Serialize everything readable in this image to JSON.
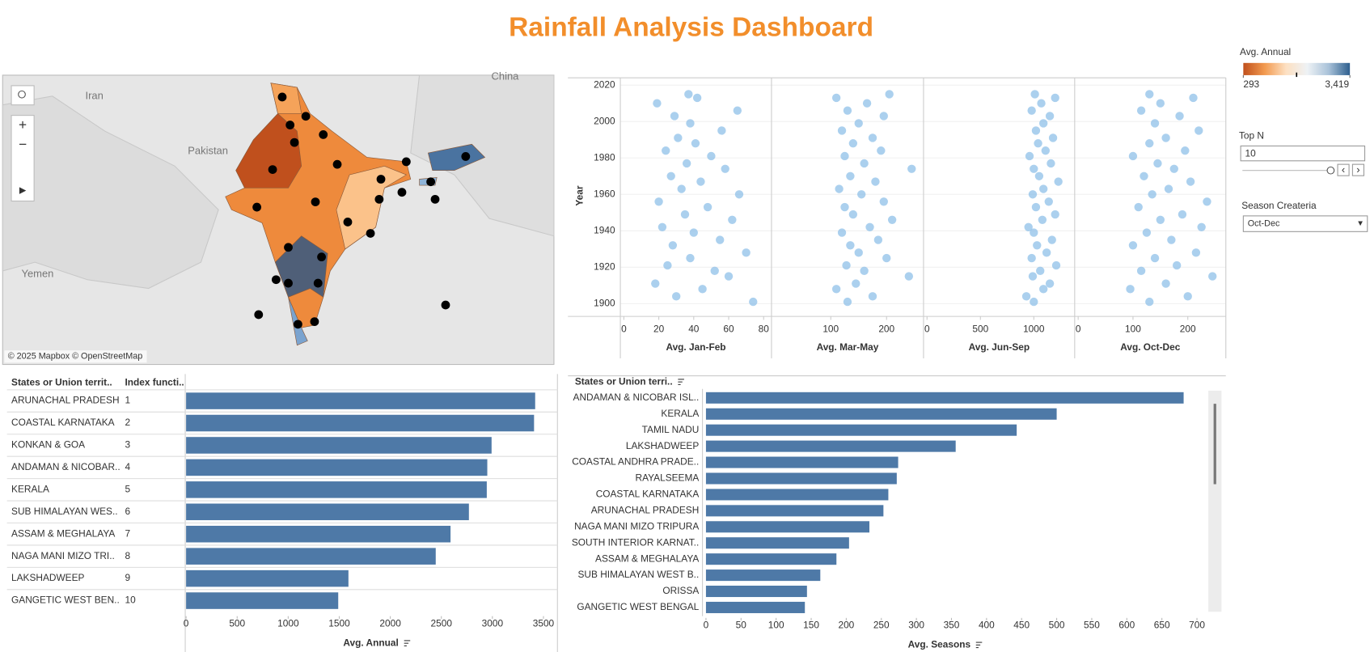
{
  "title": "Rainfall Analysis Dashboard",
  "map": {
    "labels": [
      "Iran",
      "Pakistan",
      "China",
      "Yemen"
    ],
    "attribution": "© 2025 Mapbox © OpenStreetMap"
  },
  "map_legend": {
    "title": "Avg. Annual",
    "min": {
      "value": 293,
      "label": "293"
    },
    "max": {
      "value": 3419,
      "label": "3,419"
    },
    "colors": [
      "#c0501d",
      "#f29a4f",
      "#fde0c2",
      "#eef2f5",
      "#a9c2d9",
      "#2e5f8e"
    ]
  },
  "controls": {
    "top_n": {
      "label": "Top N",
      "value": "10"
    },
    "season": {
      "label": "Season Createria",
      "value": "Oct-Dec"
    }
  },
  "chart_data": [
    {
      "type": "scatter",
      "ylabel": "Year",
      "ylim": [
        1893,
        2024
      ],
      "yticks": [
        1900,
        1920,
        1940,
        1960,
        1980,
        2000,
        2020
      ],
      "color": "#8fc0e8",
      "panels": [
        {
          "xlabel": "Avg. Jan-Feb",
          "xlim": [
            0,
            82.5
          ],
          "xticks": [
            0,
            20,
            40,
            60,
            80
          ],
          "y": [
            1901,
            1904,
            1908,
            1911,
            1915,
            1918,
            1921,
            1925,
            1928,
            1932,
            1935,
            1939,
            1942,
            1946,
            1949,
            1953,
            1956,
            1960,
            1963,
            1967,
            1970,
            1974,
            1977,
            1981,
            1984,
            1988,
            1991,
            1995,
            1999,
            2003,
            2006,
            2010,
            2013,
            2015
          ],
          "x": [
            74,
            30,
            45,
            18,
            60,
            52,
            25,
            38,
            70,
            28,
            55,
            40,
            22,
            62,
            35,
            48,
            20,
            66,
            33,
            44,
            27,
            58,
            36,
            50,
            24,
            41,
            31,
            56,
            38,
            29,
            65,
            19,
            42,
            37
          ]
        },
        {
          "xlabel": "Avg. Mar-May",
          "xlim": [
            0,
            260
          ],
          "xticks": [
            100,
            200
          ],
          "y": [
            1901,
            1904,
            1908,
            1911,
            1915,
            1918,
            1921,
            1925,
            1928,
            1932,
            1935,
            1939,
            1942,
            1946,
            1949,
            1953,
            1956,
            1960,
            1963,
            1967,
            1970,
            1974,
            1977,
            1981,
            1984,
            1988,
            1991,
            1995,
            1999,
            2003,
            2006,
            2010,
            2013,
            2015
          ],
          "x": [
            130,
            175,
            110,
            145,
            240,
            160,
            128,
            200,
            150,
            135,
            185,
            120,
            170,
            210,
            140,
            125,
            195,
            155,
            115,
            180,
            135,
            245,
            160,
            125,
            190,
            140,
            175,
            120,
            150,
            195,
            130,
            165,
            110,
            205
          ]
        },
        {
          "xlabel": "Avg. Jun-Sep",
          "xlim": [
            0,
            1350
          ],
          "xticks": [
            0,
            500,
            1000
          ],
          "y": [
            1901,
            1904,
            1908,
            1911,
            1915,
            1918,
            1921,
            1925,
            1928,
            1932,
            1935,
            1939,
            1942,
            1946,
            1949,
            1953,
            1956,
            1960,
            1963,
            1967,
            1970,
            1974,
            1977,
            1981,
            1984,
            1988,
            1991,
            1995,
            1999,
            2003,
            2006,
            2010,
            2013,
            2015
          ],
          "x": [
            1000,
            930,
            1090,
            1150,
            990,
            1060,
            1210,
            980,
            1120,
            1030,
            1170,
            1000,
            950,
            1080,
            1200,
            1020,
            1140,
            990,
            1090,
            1230,
            1050,
            1000,
            1160,
            960,
            1110,
            1040,
            1180,
            1020,
            1090,
            1150,
            980,
            1070,
            1200,
            1010
          ]
        },
        {
          "xlabel": "Avg. Oct-Dec",
          "xlim": [
            0,
            263
          ],
          "xticks": [
            0,
            100,
            200
          ],
          "y": [
            1901,
            1904,
            1908,
            1911,
            1915,
            1918,
            1921,
            1925,
            1928,
            1932,
            1935,
            1939,
            1942,
            1946,
            1949,
            1953,
            1956,
            1960,
            1963,
            1967,
            1970,
            1974,
            1977,
            1981,
            1984,
            1988,
            1991,
            1995,
            1999,
            2003,
            2006,
            2010,
            2013,
            2015
          ],
          "x": [
            130,
            200,
            95,
            160,
            245,
            115,
            180,
            140,
            215,
            100,
            170,
            125,
            225,
            150,
            190,
            110,
            235,
            135,
            165,
            205,
            120,
            175,
            145,
            100,
            195,
            130,
            160,
            220,
            140,
            185,
            115,
            150,
            210,
            130
          ]
        }
      ]
    },
    {
      "type": "bar",
      "columns": [
        "States or Union territ..",
        "Index functi.."
      ],
      "categories": [
        "ARUNACHAL PRADESH",
        "COASTAL KARNATAKA",
        "KONKAN & GOA",
        "ANDAMAN & NICOBAR..",
        "KERALA",
        "SUB HIMALAYAN WES..",
        "ASSAM & MEGHALAYA",
        "NAGA MANI MIZO TRI..",
        "LAKSHADWEEP",
        "GANGETIC WEST BEN.."
      ],
      "index": [
        1,
        2,
        3,
        4,
        5,
        6,
        7,
        8,
        9,
        10
      ],
      "values": [
        3419,
        3408,
        2992,
        2950,
        2945,
        2770,
        2590,
        2445,
        1590,
        1490
      ],
      "color": "#4e79a7",
      "xlabel": "Avg. Annual",
      "xlim": [
        0,
        3620
      ],
      "xticks": [
        0,
        500,
        1000,
        1500,
        2000,
        2500,
        3000,
        3500
      ]
    },
    {
      "type": "bar",
      "columns": [
        "States or Union terri.."
      ],
      "categories": [
        "ANDAMAN & NICOBAR ISL..",
        "KERALA",
        "TAMIL NADU",
        "LAKSHADWEEP",
        "COASTAL ANDHRA PRADE..",
        "RAYALSEEMA",
        "COASTAL KARNATAKA",
        "ARUNACHAL PRADESH",
        "NAGA MANI MIZO TRIPURA",
        "SOUTH INTERIOR KARNAT..",
        "ASSAM & MEGHALAYA",
        "SUB HIMALAYAN WEST B..",
        "ORISSA",
        "GANGETIC WEST BENGAL"
      ],
      "values": [
        681,
        500,
        443,
        356,
        274,
        272,
        260,
        253,
        233,
        204,
        186,
        163,
        144,
        141
      ],
      "color": "#4e79a7",
      "xlabel": "Avg. Seasons",
      "xlim": [
        0,
        715
      ],
      "xticks": [
        0,
        50,
        100,
        150,
        200,
        250,
        300,
        350,
        400,
        450,
        500,
        550,
        600,
        650,
        700
      ]
    }
  ]
}
